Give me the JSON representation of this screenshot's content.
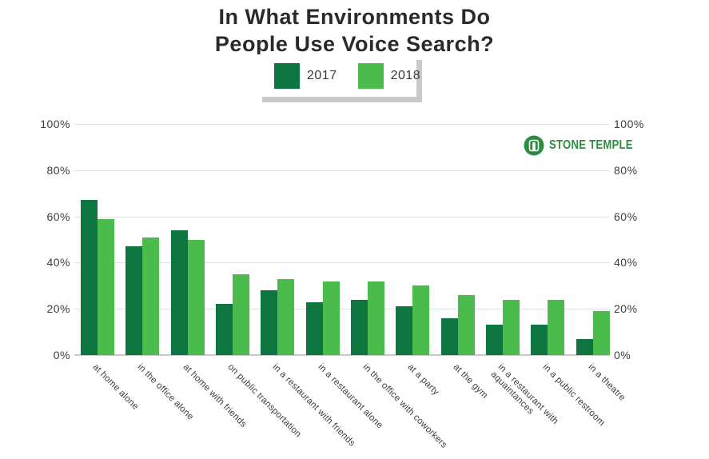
{
  "title": "In What Environments Do\nPeople Use Voice Search?",
  "brand": {
    "name": "STONE TEMPLE",
    "color": "#2e8c40"
  },
  "colors": {
    "series_2017": "#0e7440",
    "series_2018": "#4bbc4b",
    "gridline": "#e2e2e2",
    "baseline": "#c9c9c9",
    "shadow": "#c9c9c9",
    "title_text": "#2a2a2a",
    "axis_text": "#3d3d3d"
  },
  "chart_data": {
    "type": "bar",
    "title": "In What Environments Do People Use Voice Search?",
    "categories": [
      "at home alone",
      "in the office alone",
      "at home with friends",
      "on public transportation",
      "in a restaurant with friends",
      "in a restaurant alone",
      "in the office with coworkers",
      "at a party",
      "at the gym",
      "in a restaurant with\naquaintances",
      "in a public restroom",
      "in a theatre"
    ],
    "series": [
      {
        "name": "2017",
        "color": "#0e7440",
        "values": [
          67,
          47,
          54,
          22,
          28,
          23,
          24,
          21,
          16,
          13,
          13,
          7
        ]
      },
      {
        "name": "2018",
        "color": "#4bbc4b",
        "values": [
          59,
          51,
          50,
          35,
          33,
          32,
          32,
          30,
          26,
          24,
          24,
          19
        ]
      }
    ],
    "ylim": [
      0,
      100
    ],
    "yticks": [
      0,
      20,
      40,
      60,
      80,
      100
    ],
    "ytick_labels": [
      "0%",
      "20%",
      "40%",
      "60%",
      "80%",
      "100%"
    ],
    "grid": "horizontal",
    "y_axis_sides": "both",
    "legend_position": "top-center",
    "xlabel": "",
    "ylabel": ""
  }
}
